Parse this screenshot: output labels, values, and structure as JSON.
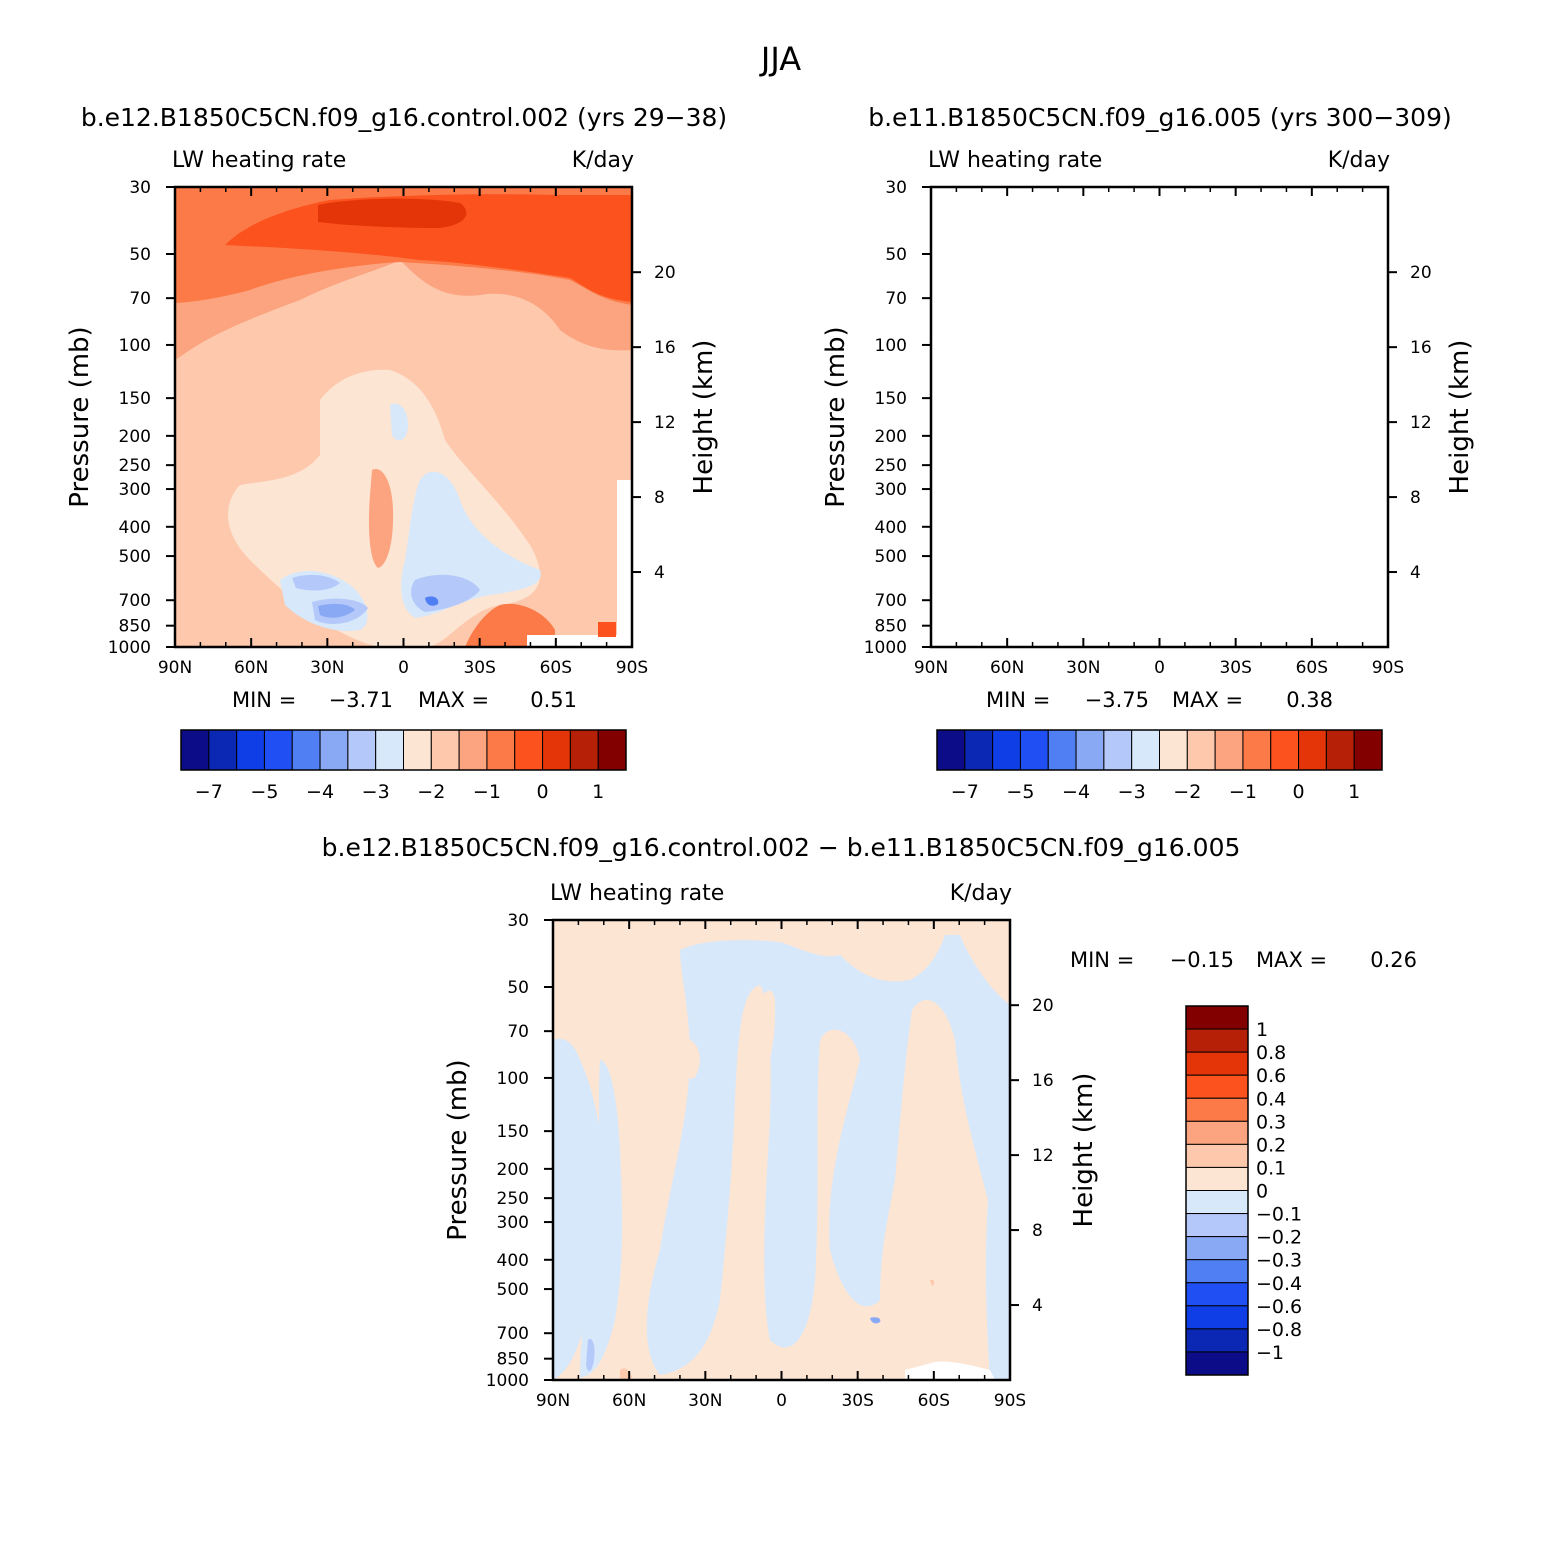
{
  "figure_title": "JJA",
  "chart_data": [
    {
      "type": "heatmap",
      "title": "b.e12.B1850C5CN.f09_g16.control.002 (yrs 29−38)",
      "left_label": "LW heating rate",
      "right_label": "K/day",
      "ylabel": "Pressure (mb)",
      "ylabel2": "Height (km)",
      "x_ticks": [
        "90N",
        "60N",
        "30N",
        "0",
        "30S",
        "60S",
        "90S"
      ],
      "y_ticks": [
        "30",
        "50",
        "70",
        "100",
        "150",
        "200",
        "250",
        "300",
        "400",
        "500",
        "700",
        "850",
        "1000"
      ],
      "height_ticks": [
        "20",
        "16",
        "12",
        "8",
        "4"
      ],
      "min_text": "MIN =",
      "min": "−3.71",
      "max_text": "MAX =",
      "max": "0.51",
      "colorbar_labels": [
        "−7",
        "−5",
        "−4",
        "−3",
        "−2",
        "−1",
        "0",
        "1"
      ]
    },
    {
      "type": "heatmap",
      "title": "b.e11.B1850C5CN.f09_g16.005 (yrs 300−309)",
      "left_label": "LW heating rate",
      "right_label": "K/day",
      "ylabel": "Pressure (mb)",
      "ylabel2": "Height (km)",
      "x_ticks": [
        "90N",
        "60N",
        "30N",
        "0",
        "30S",
        "60S",
        "90S"
      ],
      "y_ticks": [
        "30",
        "50",
        "70",
        "100",
        "150",
        "200",
        "250",
        "300",
        "400",
        "500",
        "700",
        "850",
        "1000"
      ],
      "height_ticks": [
        "20",
        "16",
        "12",
        "8",
        "4"
      ],
      "min_text": "MIN =",
      "min": "−3.75",
      "max_text": "MAX =",
      "max": "0.38",
      "colorbar_labels": [
        "−7",
        "−5",
        "−4",
        "−3",
        "−2",
        "−1",
        "0",
        "1"
      ]
    },
    {
      "type": "heatmap",
      "title": "b.e12.B1850C5CN.f09_g16.control.002 − b.e11.B1850C5CN.f09_g16.005",
      "left_label": "LW heating rate",
      "right_label": "K/day",
      "ylabel": "Pressure (mb)",
      "ylabel2": "Height (km)",
      "x_ticks": [
        "90N",
        "60N",
        "30N",
        "0",
        "30S",
        "60S",
        "90S"
      ],
      "y_ticks": [
        "30",
        "50",
        "70",
        "100",
        "150",
        "200",
        "250",
        "300",
        "400",
        "500",
        "700",
        "850",
        "1000"
      ],
      "height_ticks": [
        "20",
        "16",
        "12",
        "8",
        "4"
      ],
      "min_text": "MIN =",
      "min": "−0.15",
      "max_text": "MAX =",
      "max": "0.26",
      "colorbar_labels": [
        "1",
        "0.8",
        "0.6",
        "0.4",
        "0.3",
        "0.2",
        "0.1",
        "0",
        "−0.1",
        "−0.2",
        "−0.3",
        "−0.4",
        "−0.6",
        "−0.8",
        "−1"
      ]
    }
  ],
  "colors": {
    "main_scale": [
      "#0c0c88",
      "#0a28b4",
      "#0f3de6",
      "#2050f4",
      "#4f7ff2",
      "#8aa9f4",
      "#b4c9fa",
      "#d6e8fa",
      "#fde5d4",
      "#fdc8ac",
      "#fca480",
      "#fb7a47",
      "#fb521e",
      "#e33508",
      "#b52007",
      "#820000"
    ],
    "diff_scale": [
      "#820000",
      "#b52007",
      "#e33508",
      "#fb521e",
      "#fb7a47",
      "#fca480",
      "#fdc8ac",
      "#fde5d4",
      "#d6e8fa",
      "#b4c9fa",
      "#8aa9f4",
      "#4f7ff2",
      "#2050f4",
      "#0f3de6",
      "#0a28b4",
      "#0c0c88"
    ]
  }
}
